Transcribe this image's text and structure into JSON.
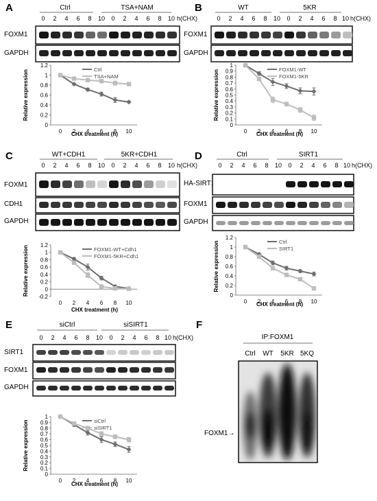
{
  "panel_a": {
    "letter": "A",
    "groups": [
      "Ctrl",
      "TSA+NAM"
    ],
    "times": [
      "0",
      "2",
      "4",
      "6",
      "8",
      "10",
      "0",
      "2",
      "4",
      "6",
      "8",
      "10"
    ],
    "unit": "h(CHX)",
    "rows": [
      "FOXM1",
      "GAPDH"
    ]
  },
  "panel_b": {
    "letter": "B",
    "groups": [
      "WT",
      "5KR"
    ],
    "times": [
      "0",
      "2",
      "4",
      "6",
      "8",
      "10",
      "0",
      "2",
      "4",
      "6",
      "8",
      "10"
    ],
    "unit": "h(CHX)",
    "rows": [
      "FOXM1",
      "GAPDH"
    ]
  },
  "panel_c": {
    "letter": "C",
    "groups": [
      "WT+CDH1",
      "5KR+CDH1"
    ],
    "times": [
      "0",
      "2",
      "4",
      "6",
      "8",
      "10",
      "0",
      "2",
      "4",
      "6",
      "8",
      "10"
    ],
    "unit": "h(CHX)",
    "rows": [
      "FOXM1",
      "CDH1",
      "GAPDH"
    ]
  },
  "panel_d": {
    "letter": "D",
    "groups": [
      "Ctrl",
      "SIRT1"
    ],
    "times": [
      "0",
      "2",
      "4",
      "6",
      "8",
      "10",
      "0",
      "2",
      "4",
      "6",
      "8",
      "10"
    ],
    "unit": "h(CHX)",
    "rows": [
      "HA-SIRT1",
      "FOXM1",
      "GAPDH"
    ]
  },
  "panel_e": {
    "letter": "E",
    "groups": [
      "siCtrl",
      "siSIRT1"
    ],
    "times": [
      "0",
      "2",
      "4",
      "6",
      "8",
      "10",
      "0",
      "2",
      "4",
      "6",
      "8",
      "10"
    ],
    "unit": "h(CHX)",
    "rows": [
      "SIRT1",
      "FOXM1",
      "GAPDH"
    ]
  },
  "panel_f": {
    "letter": "F",
    "header": "IP:FOXM1",
    "lanes": [
      "Ctrl",
      "WT",
      "5KR",
      "5KQ"
    ],
    "arrow_label": "FOXM1→"
  },
  "chart_data": [
    {
      "type": "line",
      "panel": "A",
      "x": [
        0,
        2,
        4,
        6,
        8,
        10
      ],
      "xlabel": "CHX treatment (h)",
      "ylabel": "Relative expression",
      "ylim": [
        0,
        1.2
      ],
      "yticks": [
        "0",
        "0.2",
        "0.4",
        "0.6",
        "0.8",
        "1",
        "1.2"
      ],
      "legend_position": "top-right",
      "series": [
        {
          "name": "Ctrl",
          "values": [
            1.0,
            0.82,
            0.71,
            0.62,
            0.5,
            0.46
          ],
          "color": "#6e6e6e",
          "marker": "diamond"
        },
        {
          "name": "TSA+NAM",
          "values": [
            1.0,
            0.93,
            0.9,
            0.88,
            0.84,
            0.82
          ],
          "color": "#bdbdbd",
          "marker": "square"
        }
      ]
    },
    {
      "type": "line",
      "panel": "B",
      "x": [
        0,
        2,
        4,
        6,
        8,
        10
      ],
      "xlabel": "CHX treatment (h)",
      "ylabel": "Relative expression",
      "ylim": [
        0,
        1
      ],
      "yticks": [
        "0",
        "0.1",
        "0.2",
        "0.3",
        "0.4",
        "0.5",
        "0.6",
        "0.7",
        "0.8",
        "0.9",
        "1"
      ],
      "legend_position": "top-right",
      "series": [
        {
          "name": "FOXM1-WT",
          "values": [
            1.0,
            0.86,
            0.72,
            0.65,
            0.57,
            0.56
          ],
          "color": "#6e6e6e",
          "marker": "diamond"
        },
        {
          "name": "FOXM1-5KR",
          "values": [
            1.0,
            0.77,
            0.42,
            0.35,
            0.25,
            0.12
          ],
          "color": "#bdbdbd",
          "marker": "square"
        }
      ]
    },
    {
      "type": "line",
      "panel": "C",
      "x": [
        0,
        2,
        4,
        6,
        8,
        10
      ],
      "xlabel": "CHX treatment (h)",
      "ylabel": "Relative expression",
      "ylim": [
        -0.2,
        1.2
      ],
      "yticks": [
        "-0.2",
        "0",
        "0.2",
        "0.4",
        "0.6",
        "0.8",
        "1",
        "1.2"
      ],
      "legend_position": "top-right",
      "series": [
        {
          "name": "FOXM1-WT+Cdh1",
          "values": [
            1.0,
            0.82,
            0.6,
            0.3,
            0.07,
            0.02
          ],
          "color": "#6e6e6e",
          "marker": "diamond"
        },
        {
          "name": "FOXM1-5KR+Cdh1",
          "values": [
            1.0,
            0.72,
            0.38,
            0.07,
            0.02,
            0.01
          ],
          "color": "#bdbdbd",
          "marker": "square"
        }
      ]
    },
    {
      "type": "line",
      "panel": "D",
      "x": [
        0,
        2,
        4,
        6,
        8,
        10
      ],
      "xlabel": "CHX treatment (h)",
      "ylabel": "Relative expression",
      "ylim": [
        0,
        1.2
      ],
      "yticks": [
        "0",
        "0.2",
        "0.4",
        "0.6",
        "0.8",
        "1",
        "1.2"
      ],
      "legend_position": "top-right",
      "series": [
        {
          "name": "Ctrl",
          "values": [
            1.0,
            0.85,
            0.67,
            0.56,
            0.5,
            0.44
          ],
          "color": "#6e6e6e",
          "marker": "diamond"
        },
        {
          "name": "SIRT1",
          "values": [
            1.0,
            0.8,
            0.56,
            0.42,
            0.33,
            0.14
          ],
          "color": "#bdbdbd",
          "marker": "square"
        }
      ]
    },
    {
      "type": "line",
      "panel": "E",
      "x": [
        0,
        2,
        4,
        6,
        8,
        10
      ],
      "xlabel": "CHX treatment (h)",
      "ylabel": "Relative expression",
      "ylim": [
        0,
        1
      ],
      "yticks": [
        "0",
        "0.1",
        "0.2",
        "0.3",
        "0.4",
        "0.5",
        "0.6",
        "0.7",
        "0.8",
        "0.9",
        "1"
      ],
      "legend_position": "top-right",
      "series": [
        {
          "name": "siCtrl",
          "values": [
            1.0,
            0.86,
            0.72,
            0.6,
            0.52,
            0.43
          ],
          "color": "#6e6e6e",
          "marker": "diamond"
        },
        {
          "name": "siSIRT1",
          "values": [
            1.0,
            0.88,
            0.8,
            0.7,
            0.65,
            0.6
          ],
          "color": "#bdbdbd",
          "marker": "square"
        }
      ]
    }
  ]
}
